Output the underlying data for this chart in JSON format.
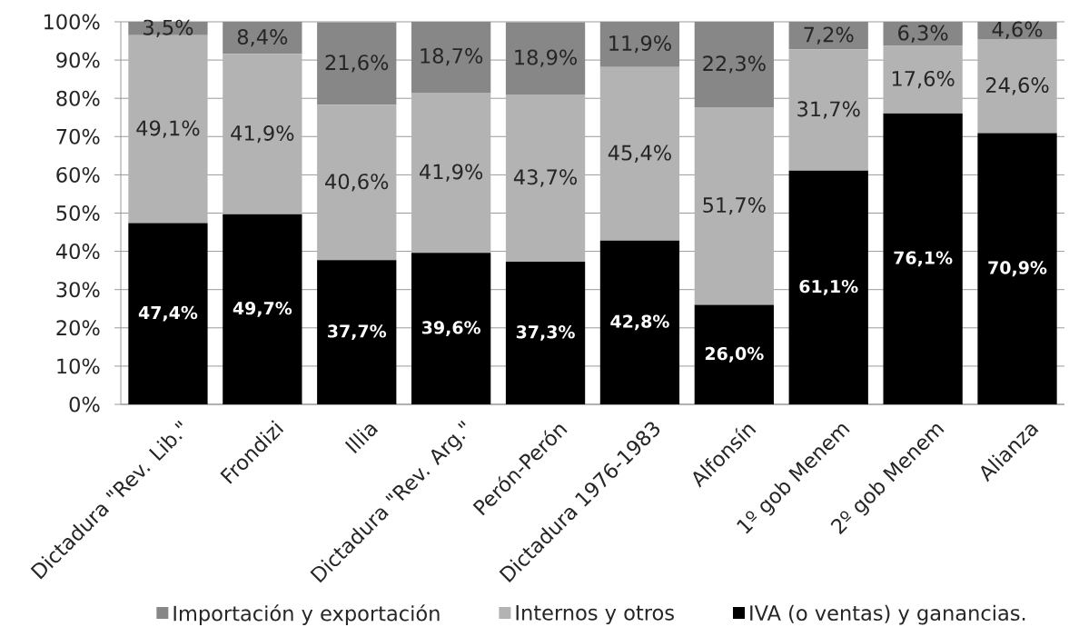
{
  "chart_data": {
    "type": "bar",
    "stacked": true,
    "categories": [
      "Dictadura \"Rev. Lib.\"",
      "Frondizi",
      "Illia",
      "Dictadura \"Rev. Arg.\"",
      "Perón-Perón",
      "Dictadura 1976-1983",
      "Alfonsín",
      "1º gob Menem",
      "2º gob Menem",
      "Alianza"
    ],
    "series": [
      {
        "name": "IVA (o ventas) y ganancias.",
        "color": "#000000",
        "values": [
          47.4,
          49.7,
          37.7,
          39.6,
          37.3,
          42.8,
          26.0,
          61.1,
          76.1,
          70.9
        ],
        "value_labels": [
          "47,4%",
          "49,7%",
          "37,7%",
          "39,6%",
          "37,3%",
          "42,8%",
          "26,0%",
          "61,1%",
          "76,1%",
          "70,9%"
        ]
      },
      {
        "name": "Internos y otros",
        "color": "#b3b3b3",
        "values": [
          49.1,
          41.9,
          40.6,
          41.9,
          43.7,
          45.4,
          51.7,
          31.7,
          17.6,
          24.6
        ],
        "value_labels": [
          "49,1%",
          "41,9%",
          "40,6%",
          "41,9%",
          "43,7%",
          "45,4%",
          "51,7%",
          "31,7%",
          "17,6%",
          "24,6%"
        ]
      },
      {
        "name": "Importación y exportación",
        "color": "#878787",
        "values": [
          3.5,
          8.4,
          21.6,
          18.7,
          18.9,
          11.9,
          22.3,
          7.2,
          6.3,
          4.6
        ],
        "value_labels": [
          "3,5%",
          "8,4%",
          "21,6%",
          "18,7%",
          "18,9%",
          "11,9%",
          "22,3%",
          "7,2%",
          "6,3%",
          "4,6%"
        ]
      }
    ],
    "ylim": [
      0,
      100
    ],
    "yticks": [
      {
        "value": 0,
        "label": "0%"
      },
      {
        "value": 10,
        "label": "10%"
      },
      {
        "value": 20,
        "label": "20%"
      },
      {
        "value": 30,
        "label": "30%"
      },
      {
        "value": 40,
        "label": "40%"
      },
      {
        "value": 50,
        "label": "50%"
      },
      {
        "value": 60,
        "label": "60%"
      },
      {
        "value": 70,
        "label": "70%"
      },
      {
        "value": 80,
        "label": "80%"
      },
      {
        "value": 90,
        "label": "90%"
      },
      {
        "value": 100,
        "label": "100%"
      }
    ],
    "grid": "y",
    "legend": "bottom"
  }
}
